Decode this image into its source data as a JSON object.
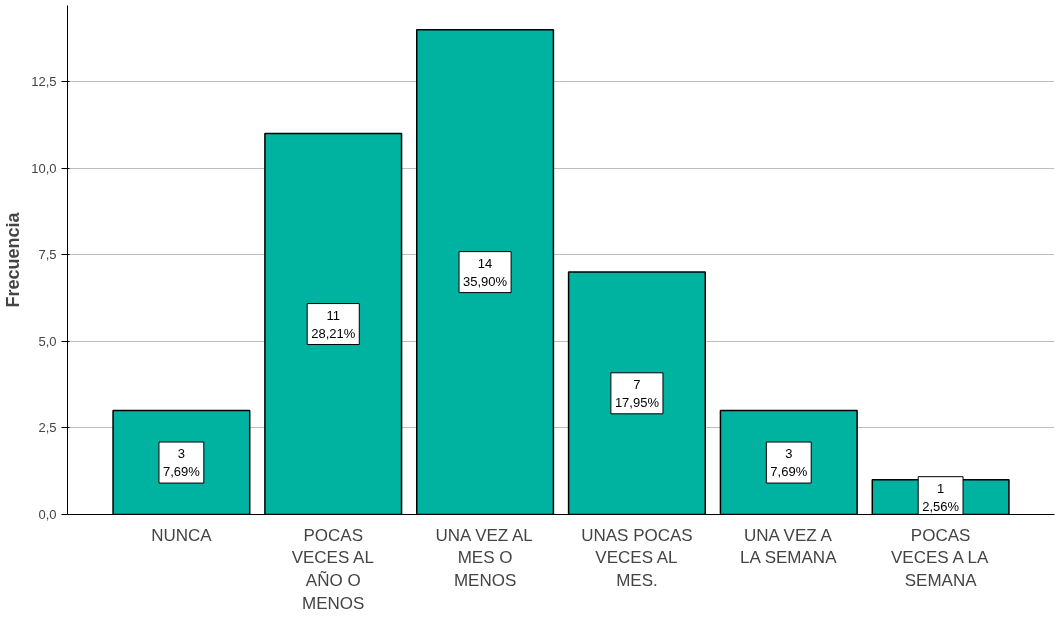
{
  "chart_data": {
    "type": "bar",
    "ylabel": "Frecuencia",
    "categories": [
      "NUNCA",
      "POCAS VECES AL AÑO O MENOS",
      "UNA VEZ AL MES O MENOS",
      "UNAS POCAS VECES AL MES.",
      "UNA VEZ A LA SEMANA",
      "POCAS VECES A LA SEMANA"
    ],
    "values": [
      3,
      11,
      14,
      7,
      3,
      1
    ],
    "value_labels": [
      "3\n7,69%",
      "11\n28,21%",
      "14\n35,90%",
      "7\n17,95%",
      "3\n7,69%",
      "1\n2,56%"
    ],
    "color": "#00b2a0",
    "ylim": [
      0,
      14.7
    ],
    "yticks": [
      {
        "value": 0,
        "label": "0,0"
      },
      {
        "value": 2.5,
        "label": "2,5"
      },
      {
        "value": 5,
        "label": "5,0"
      },
      {
        "value": 7.5,
        "label": "7,5"
      },
      {
        "value": 10,
        "label": "10,0"
      },
      {
        "value": 12.5,
        "label": "12,5"
      }
    ],
    "grid": "y"
  }
}
